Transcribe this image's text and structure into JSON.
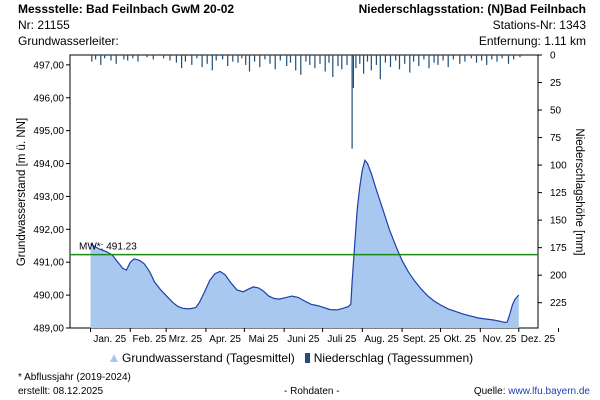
{
  "header": {
    "station_title": "Messstelle: Bad Feilnbach GwM 20-02",
    "station_nr": "Nr: 21155",
    "aquifer_label": "Grundwasserleiter:",
    "precip_station": "Niederschlagsstation: (N)Bad Feilnbach",
    "precip_station_nr": "Stations-Nr: 1343",
    "distance": "Entfernung: 1.11 km"
  },
  "legend": {
    "groundwater_label": "Grundwasserstand (Tagesmittel)",
    "precip_label": "Niederschlag (Tagessummen)"
  },
  "footer": {
    "footnote": "* Abflussjahr (2019-2024)",
    "created": "erstellt:  08.12.2025",
    "raw_data": "- Rohdaten -",
    "source_prefix": "Quelle: ",
    "source_link": "www.lfu.bayern.de"
  },
  "colors": {
    "area_fill": "#a9c8ef",
    "line": "#1f3fa6",
    "precip_bar": "#1f4e78",
    "mean_line": "#1a8a1a"
  },
  "chart_data": {
    "type": "area",
    "ylabel_left": "Grundwasserstand [m ü. NN]",
    "ylabel_right": "Niederschlagshöhe [mm]",
    "y_ticks_left": [
      "489,00",
      "490,00",
      "491,00",
      "492,00",
      "493,00",
      "494,00",
      "495,00",
      "496,00",
      "497,00"
    ],
    "y_ticks_right": [
      "0",
      "25",
      "50",
      "75",
      "100",
      "125",
      "150",
      "175",
      "200",
      "225"
    ],
    "x_ticks": [
      "Jan. 25",
      "Feb. 25",
      "Mrz. 25",
      "Apr. 25",
      "Mai 25",
      "Juni 25",
      "Juli 25",
      "Aug. 25",
      "Sept. 25",
      "Okt. 25",
      "Nov. 25",
      "Dez. 25"
    ],
    "ylim_left": [
      489.0,
      497.3
    ],
    "ylim_right": [
      0,
      248
    ],
    "grid": false,
    "mean_line": {
      "label": "MW*: 491.23",
      "value": 491.23
    },
    "groundwater": {
      "name": "Grundwasserstand (Tagesmittel)",
      "points": [
        [
          "2025-01-01",
          491.56
        ],
        [
          "2025-01-04",
          491.48
        ],
        [
          "2025-01-08",
          491.4
        ],
        [
          "2025-01-13",
          491.33
        ],
        [
          "2025-01-18",
          491.22
        ],
        [
          "2025-01-22",
          491.02
        ],
        [
          "2025-01-26",
          490.82
        ],
        [
          "2025-01-29",
          490.76
        ],
        [
          "2025-02-01",
          491.0
        ],
        [
          "2025-02-04",
          491.1
        ],
        [
          "2025-02-08",
          491.06
        ],
        [
          "2025-02-12",
          490.95
        ],
        [
          "2025-02-16",
          490.72
        ],
        [
          "2025-02-20",
          490.4
        ],
        [
          "2025-02-25",
          490.15
        ],
        [
          "2025-03-02",
          489.95
        ],
        [
          "2025-03-06",
          489.78
        ],
        [
          "2025-03-10",
          489.66
        ],
        [
          "2025-03-14",
          489.6
        ],
        [
          "2025-03-19",
          489.58
        ],
        [
          "2025-03-24",
          489.62
        ],
        [
          "2025-03-27",
          489.78
        ],
        [
          "2025-03-31",
          490.1
        ],
        [
          "2025-04-04",
          490.45
        ],
        [
          "2025-04-08",
          490.65
        ],
        [
          "2025-04-12",
          490.72
        ],
        [
          "2025-04-16",
          490.62
        ],
        [
          "2025-04-20",
          490.4
        ],
        [
          "2025-04-25",
          490.16
        ],
        [
          "2025-04-30",
          490.1
        ],
        [
          "2025-05-04",
          490.18
        ],
        [
          "2025-05-08",
          490.25
        ],
        [
          "2025-05-12",
          490.22
        ],
        [
          "2025-05-16",
          490.12
        ],
        [
          "2025-05-20",
          489.97
        ],
        [
          "2025-05-24",
          489.9
        ],
        [
          "2025-05-28",
          489.88
        ],
        [
          "2025-06-02",
          489.92
        ],
        [
          "2025-06-07",
          489.97
        ],
        [
          "2025-06-12",
          489.93
        ],
        [
          "2025-06-17",
          489.82
        ],
        [
          "2025-06-22",
          489.72
        ],
        [
          "2025-06-27",
          489.68
        ],
        [
          "2025-07-02",
          489.62
        ],
        [
          "2025-07-07",
          489.56
        ],
        [
          "2025-07-12",
          489.55
        ],
        [
          "2025-07-17",
          489.6
        ],
        [
          "2025-07-21",
          489.65
        ],
        [
          "2025-07-23",
          489.72
        ],
        [
          "2025-07-24",
          490.4
        ],
        [
          "2025-07-26",
          491.5
        ],
        [
          "2025-07-28",
          492.6
        ],
        [
          "2025-07-30",
          493.3
        ],
        [
          "2025-08-01",
          493.8
        ],
        [
          "2025-08-03",
          494.1
        ],
        [
          "2025-08-05",
          494.0
        ],
        [
          "2025-08-08",
          493.7
        ],
        [
          "2025-08-12",
          493.2
        ],
        [
          "2025-08-17",
          492.6
        ],
        [
          "2025-08-22",
          492.0
        ],
        [
          "2025-08-27",
          491.5
        ],
        [
          "2025-09-01",
          491.05
        ],
        [
          "2025-09-06",
          490.7
        ],
        [
          "2025-09-11",
          490.42
        ],
        [
          "2025-09-16",
          490.18
        ],
        [
          "2025-09-21",
          489.98
        ],
        [
          "2025-09-26",
          489.82
        ],
        [
          "2025-10-01",
          489.7
        ],
        [
          "2025-10-07",
          489.58
        ],
        [
          "2025-10-13",
          489.5
        ],
        [
          "2025-10-19",
          489.42
        ],
        [
          "2025-10-25",
          489.36
        ],
        [
          "2025-10-31",
          489.3
        ],
        [
          "2025-11-06",
          489.27
        ],
        [
          "2025-11-12",
          489.24
        ],
        [
          "2025-11-17",
          489.2
        ],
        [
          "2025-11-20",
          489.17
        ],
        [
          "2025-11-22",
          489.18
        ],
        [
          "2025-11-24",
          489.42
        ],
        [
          "2025-11-26",
          489.7
        ],
        [
          "2025-11-28",
          489.87
        ],
        [
          "2025-11-30",
          489.96
        ],
        [
          "2025-12-01",
          490.0
        ]
      ]
    },
    "precipitation": {
      "name": "Niederschlag (Tagessummen)",
      "days": [
        [
          "2025-01-02",
          6
        ],
        [
          "2025-01-05",
          4
        ],
        [
          "2025-01-09",
          9
        ],
        [
          "2025-01-12",
          3
        ],
        [
          "2025-01-17",
          5
        ],
        [
          "2025-01-21",
          8
        ],
        [
          "2025-01-27",
          4
        ],
        [
          "2025-01-30",
          5
        ],
        [
          "2025-02-03",
          3
        ],
        [
          "2025-02-07",
          6
        ],
        [
          "2025-02-14",
          2
        ],
        [
          "2025-02-19",
          4
        ],
        [
          "2025-02-27",
          3
        ],
        [
          "2025-03-04",
          5
        ],
        [
          "2025-03-09",
          7
        ],
        [
          "2025-03-13",
          12
        ],
        [
          "2025-03-16",
          6
        ],
        [
          "2025-03-21",
          9
        ],
        [
          "2025-03-25",
          3
        ],
        [
          "2025-03-29",
          11
        ],
        [
          "2025-04-02",
          8
        ],
        [
          "2025-04-06",
          14
        ],
        [
          "2025-04-09",
          5
        ],
        [
          "2025-04-14",
          4
        ],
        [
          "2025-04-18",
          10
        ],
        [
          "2025-04-22",
          6
        ],
        [
          "2025-04-26",
          7
        ],
        [
          "2025-04-29",
          3
        ],
        [
          "2025-05-02",
          9
        ],
        [
          "2025-05-05",
          15
        ],
        [
          "2025-05-09",
          6
        ],
        [
          "2025-05-13",
          11
        ],
        [
          "2025-05-17",
          4
        ],
        [
          "2025-05-21",
          8
        ],
        [
          "2025-05-25",
          13
        ],
        [
          "2025-05-29",
          5
        ],
        [
          "2025-06-03",
          10
        ],
        [
          "2025-06-06",
          7
        ],
        [
          "2025-06-10",
          14
        ],
        [
          "2025-06-14",
          18
        ],
        [
          "2025-06-18",
          6
        ],
        [
          "2025-06-21",
          9
        ],
        [
          "2025-06-25",
          12
        ],
        [
          "2025-06-29",
          8
        ],
        [
          "2025-07-03",
          15
        ],
        [
          "2025-07-06",
          7
        ],
        [
          "2025-07-09",
          20
        ],
        [
          "2025-07-13",
          10
        ],
        [
          "2025-07-16",
          13
        ],
        [
          "2025-07-20",
          9
        ],
        [
          "2025-07-24",
          85
        ],
        [
          "2025-07-25",
          30
        ],
        [
          "2025-07-27",
          12
        ],
        [
          "2025-07-30",
          8
        ],
        [
          "2025-08-02",
          17
        ],
        [
          "2025-08-05",
          6
        ],
        [
          "2025-08-08",
          14
        ],
        [
          "2025-08-12",
          9
        ],
        [
          "2025-08-15",
          22
        ],
        [
          "2025-08-19",
          7
        ],
        [
          "2025-08-23",
          11
        ],
        [
          "2025-08-27",
          5
        ],
        [
          "2025-08-30",
          13
        ],
        [
          "2025-09-03",
          8
        ],
        [
          "2025-09-07",
          16
        ],
        [
          "2025-09-10",
          6
        ],
        [
          "2025-09-14",
          10
        ],
        [
          "2025-09-18",
          4
        ],
        [
          "2025-09-22",
          12
        ],
        [
          "2025-09-26",
          7
        ],
        [
          "2025-09-29",
          9
        ],
        [
          "2025-10-03",
          5
        ],
        [
          "2025-10-07",
          11
        ],
        [
          "2025-10-11",
          4
        ],
        [
          "2025-10-16",
          8
        ],
        [
          "2025-10-20",
          6
        ],
        [
          "2025-10-25",
          3
        ],
        [
          "2025-10-29",
          7
        ],
        [
          "2025-11-02",
          5
        ],
        [
          "2025-11-06",
          9
        ],
        [
          "2025-11-10",
          4
        ],
        [
          "2025-11-14",
          6
        ],
        [
          "2025-11-18",
          3
        ],
        [
          "2025-11-23",
          8
        ],
        [
          "2025-11-27",
          4
        ],
        [
          "2025-12-02",
          2
        ]
      ]
    }
  }
}
